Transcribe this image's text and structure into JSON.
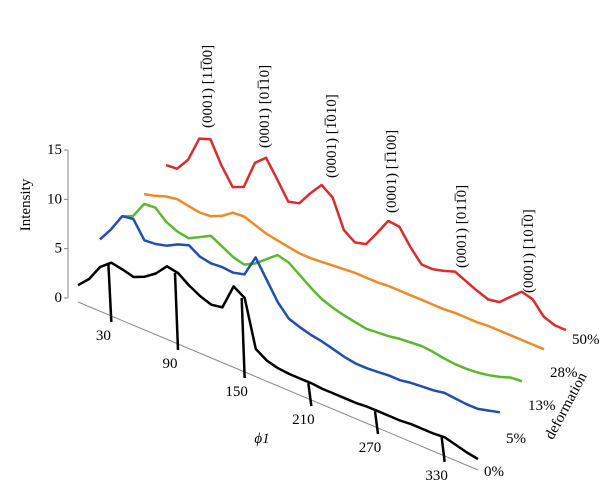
{
  "chart_data": {
    "type": "waterfall",
    "x_label": "ϕ1",
    "y_label": "Intensity",
    "z_label": "deformation",
    "xlim": [
      0,
      360
    ],
    "xticks": [
      30,
      90,
      150,
      210,
      270,
      330
    ],
    "ylim": [
      0,
      15
    ],
    "yticks": [
      0,
      5,
      10,
      15
    ],
    "x": [
      0,
      10,
      20,
      30,
      40,
      50,
      60,
      70,
      80,
      90,
      100,
      110,
      120,
      130,
      140,
      150,
      160,
      170,
      180,
      190,
      200,
      210,
      220,
      230,
      240,
      250,
      260,
      270,
      280,
      290,
      300,
      310,
      320,
      330,
      340,
      350,
      360
    ],
    "series": [
      {
        "name": "0%",
        "color": "#000000",
        "values": [
          1.7,
          2.8,
          4.5,
          5.4,
          5.2,
          4.9,
          5.4,
          6.2,
          7.4,
          7.2,
          6.4,
          5.8,
          5.4,
          5.6,
          8.2,
          7.5,
          2.8,
          2.1,
          1.8,
          1.7,
          1.7,
          1.7,
          1.6,
          1.6,
          1.6,
          1.6,
          1.7,
          1.7,
          1.7,
          1.7,
          1.8,
          1.8,
          1.8,
          1.9,
          1.6,
          1.3,
          1.1
        ]
      },
      {
        "name": "5%",
        "color": "#1f4fb0",
        "values": [
          3.0,
          4.5,
          6.3,
          6.5,
          4.8,
          4.9,
          5.2,
          5.8,
          6.2,
          5.5,
          5.3,
          5.4,
          5.3,
          5.6,
          7.8,
          6.0,
          4.2,
          3.0,
          2.6,
          2.3,
          2.1,
          1.8,
          1.5,
          1.3,
          1.3,
          1.4,
          1.5,
          1.5,
          1.7,
          1.8,
          1.9,
          2.1,
          2.0,
          1.9,
          1.9,
          2.2,
          2.5
        ]
      },
      {
        "name": "13%",
        "color": "#5cb82e",
        "values": [
          2.0,
          2.5,
          4.2,
          4.3,
          3.3,
          2.8,
          2.6,
          3.2,
          3.8,
          3.2,
          2.6,
          2.3,
          2.9,
          3.8,
          4.7,
          4.4,
          3.6,
          2.8,
          2.1,
          1.7,
          1.4,
          1.2,
          1.0,
          1.1,
          1.2,
          1.4,
          1.5,
          1.6,
          1.5,
          1.3,
          1.2,
          1.2,
          1.3,
          1.5,
          1.8,
          2.2,
          2.3
        ]
      },
      {
        "name": "28%",
        "color": "#f08a24",
        "values": [
          0.9,
          1.2,
          1.6,
          1.8,
          1.6,
          1.4,
          1.5,
          2.0,
          2.8,
          2.9,
          2.5,
          2.1,
          1.9,
          1.7,
          1.5,
          1.5,
          1.6,
          1.7,
          1.8,
          1.9,
          1.9,
          1.9,
          2.0,
          2.0,
          2.0,
          2.0,
          2.0,
          2.0,
          2.1,
          2.1,
          2.1,
          2.2,
          2.2,
          2.2,
          2.2,
          2.2,
          2.2
        ]
      },
      {
        "name": "50%",
        "color": "#e02a2a",
        "values": [
          0.5,
          0.6,
          2.0,
          4.6,
          5.0,
          2.8,
          1.1,
          1.6,
          4.5,
          5.5,
          3.8,
          2.0,
          2.3,
          3.8,
          5.1,
          4.3,
          1.5,
          0.7,
          1.0,
          2.6,
          4.3,
          4.2,
          2.6,
          1.3,
          1.3,
          1.6,
          2.0,
          1.5,
          1.0,
          0.6,
          0.8,
          1.8,
          2.8,
          2.5,
          1.2,
          0.8,
          0.8
        ]
      }
    ],
    "annotations": [
      "(0001) [11̅00]",
      "(0001) [01̅10]",
      "(0001) [1̅010]",
      "(0001) [1̅100]",
      "(0001) [011̅0]",
      "(0001) [101̅0]"
    ]
  }
}
